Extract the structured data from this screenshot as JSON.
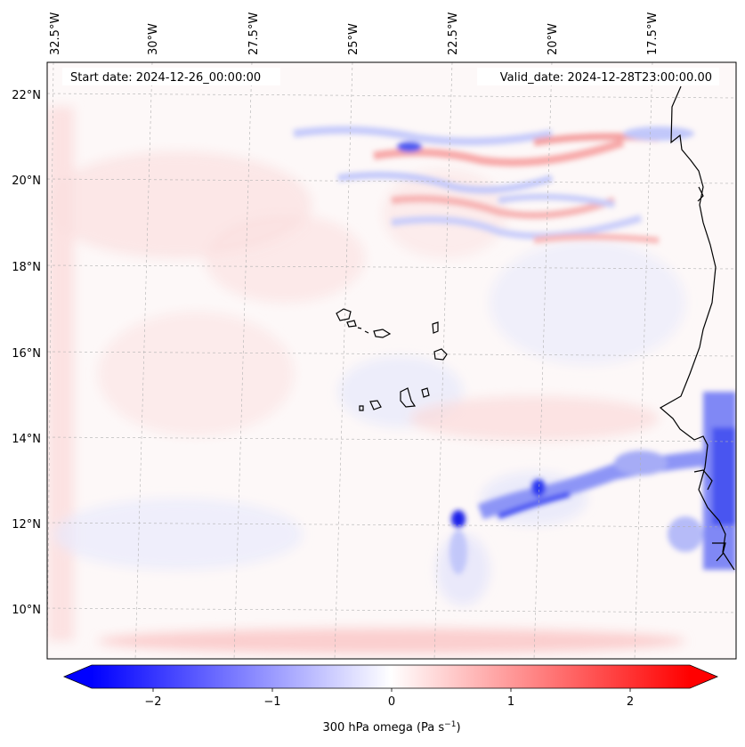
{
  "header": {
    "start_date": "Start date: 2024-12-26_00:00:00",
    "valid_date": "Valid_date: 2024-12-28T23:00:00.00"
  },
  "map": {
    "lon_labels": [
      "32.5°W",
      "30°W",
      "27.5°W",
      "25°W",
      "22.5°W",
      "20°W",
      "17.5°W"
    ],
    "lat_labels": [
      "22°N",
      "20°N",
      "18°N",
      "16°N",
      "14°N",
      "12°N",
      "10°N"
    ],
    "gridlines": true,
    "field": "300 hPa omega",
    "colormap": "bwr"
  },
  "colorbar": {
    "ticks": [
      "−2",
      "−1",
      "0",
      "1",
      "2"
    ],
    "label": "300 hPa omega (Pa s",
    "label_exp": "−1",
    "label_close": ")",
    "range": [
      -2.6,
      2.6
    ],
    "extend": "both",
    "colors": {
      "min": "#0000ff",
      "mid": "#ffffff",
      "max": "#ff0000"
    }
  }
}
